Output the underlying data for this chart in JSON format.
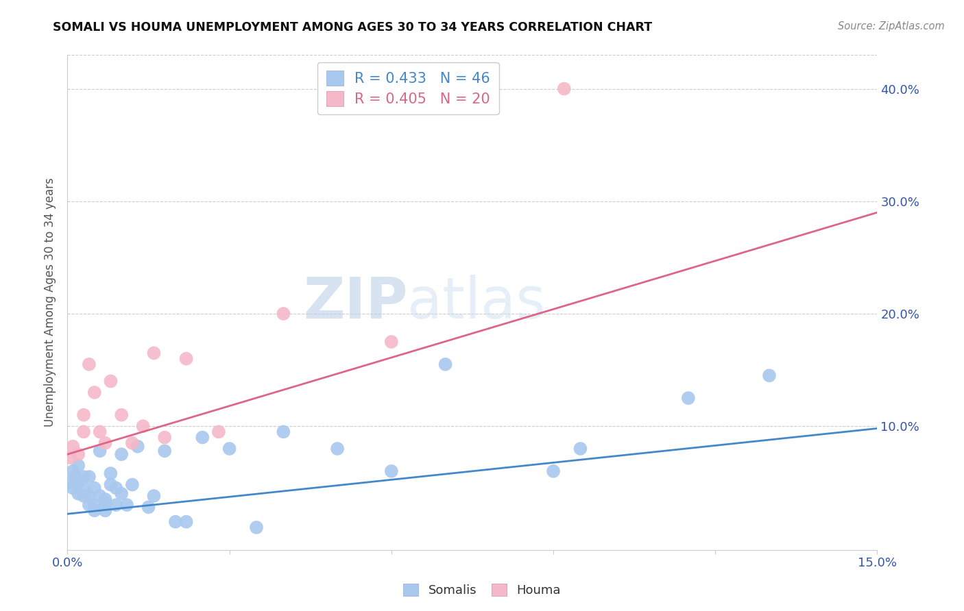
{
  "title": "SOMALI VS HOUMA UNEMPLOYMENT AMONG AGES 30 TO 34 YEARS CORRELATION CHART",
  "source": "Source: ZipAtlas.com",
  "ylabel": "Unemployment Among Ages 30 to 34 years",
  "xlim": [
    0.0,
    0.15
  ],
  "ylim": [
    -0.01,
    0.43
  ],
  "yticks": [
    0.1,
    0.2,
    0.3,
    0.4
  ],
  "ytick_labels": [
    "10.0%",
    "20.0%",
    "30.0%",
    "40.0%"
  ],
  "xticks": [
    0.0,
    0.03,
    0.06,
    0.09,
    0.12,
    0.15
  ],
  "xtick_labels": [
    "0.0%",
    "",
    "",
    "",
    "",
    "15.0%"
  ],
  "somali_color": "#a8c8ee",
  "houma_color": "#f5b8c8",
  "somali_line_color": "#4488cc",
  "houma_line_color": "#dd6688",
  "legend_r_somali": "R = 0.433",
  "legend_n_somali": "N = 46",
  "legend_r_houma": "R = 0.405",
  "legend_n_houma": "N = 20",
  "watermark_zip": "ZIP",
  "watermark_atlas": "atlas",
  "somali_x": [
    0.0005,
    0.001,
    0.001,
    0.0015,
    0.002,
    0.002,
    0.002,
    0.003,
    0.003,
    0.003,
    0.004,
    0.004,
    0.004,
    0.005,
    0.005,
    0.005,
    0.006,
    0.006,
    0.007,
    0.007,
    0.007,
    0.008,
    0.008,
    0.009,
    0.009,
    0.01,
    0.01,
    0.011,
    0.012,
    0.013,
    0.015,
    0.016,
    0.018,
    0.02,
    0.022,
    0.025,
    0.03,
    0.035,
    0.04,
    0.05,
    0.06,
    0.07,
    0.09,
    0.095,
    0.115,
    0.13
  ],
  "somali_y": [
    0.05,
    0.045,
    0.06,
    0.055,
    0.05,
    0.04,
    0.065,
    0.045,
    0.038,
    0.055,
    0.038,
    0.03,
    0.055,
    0.045,
    0.025,
    0.03,
    0.038,
    0.078,
    0.035,
    0.025,
    0.032,
    0.058,
    0.048,
    0.03,
    0.045,
    0.04,
    0.075,
    0.03,
    0.048,
    0.082,
    0.028,
    0.038,
    0.078,
    0.015,
    0.015,
    0.09,
    0.08,
    0.01,
    0.095,
    0.08,
    0.06,
    0.155,
    0.06,
    0.08,
    0.125,
    0.145
  ],
  "houma_x": [
    0.0005,
    0.001,
    0.002,
    0.003,
    0.003,
    0.004,
    0.005,
    0.006,
    0.007,
    0.008,
    0.01,
    0.012,
    0.014,
    0.016,
    0.018,
    0.022,
    0.028,
    0.04,
    0.06,
    0.092
  ],
  "houma_y": [
    0.072,
    0.082,
    0.075,
    0.095,
    0.11,
    0.155,
    0.13,
    0.095,
    0.085,
    0.14,
    0.11,
    0.085,
    0.1,
    0.165,
    0.09,
    0.16,
    0.095,
    0.2,
    0.175,
    0.4
  ],
  "somali_trendline_x": [
    0.0,
    0.15
  ],
  "somali_trendline_y": [
    0.022,
    0.098
  ],
  "houma_trendline_x": [
    0.0,
    0.15
  ],
  "houma_trendline_y": [
    0.075,
    0.29
  ]
}
